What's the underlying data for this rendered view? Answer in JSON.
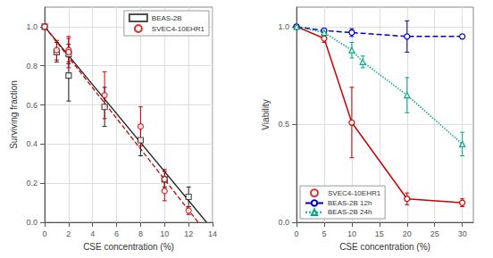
{
  "chart_data": [
    {
      "type": "scatter",
      "xlabel": "CSE concentration (%)",
      "ylabel": "Surviving fraction",
      "xlim": [
        0,
        14
      ],
      "ylim": [
        0.0,
        1.1
      ],
      "xticks": [
        0,
        2,
        4,
        6,
        8,
        10,
        12,
        14
      ],
      "yticks": [
        {
          "value": 0.0,
          "label": "0.0"
        },
        0.2,
        0.4,
        0.6,
        0.8,
        {
          "value": 1.0,
          "label": "1.0"
        }
      ],
      "grid": true,
      "legend": "upper right",
      "series": [
        {
          "name": "BEAS-2B",
          "color": "#222222",
          "marker": "square",
          "line_style": "solid",
          "x": [
            0,
            1,
            2,
            2,
            5,
            8,
            10,
            12
          ],
          "values": [
            1.0,
            0.87,
            0.86,
            0.75,
            0.59,
            0.42,
            0.22,
            0.13
          ],
          "yerr": [
            0.0,
            0.05,
            0.05,
            0.13,
            0.1,
            0.08,
            0.04,
            0.05
          ],
          "fit": {
            "x": [
              0,
              13.5
            ],
            "values": [
              1.0,
              0.0
            ]
          }
        },
        {
          "name": "SVEC4-10EHR1",
          "color": "#cc0000",
          "marker": "circle",
          "line_style": "dashed",
          "x": [
            0,
            1,
            2,
            2,
            5,
            8,
            10,
            10,
            12
          ],
          "values": [
            1.0,
            0.88,
            0.88,
            0.87,
            0.65,
            0.49,
            0.22,
            0.16,
            0.06
          ],
          "yerr": [
            0.0,
            0.05,
            0.06,
            0.08,
            0.12,
            0.1,
            0.05,
            0.05,
            0.02
          ],
          "fit": {
            "x": [
              0,
              12.8
            ],
            "values": [
              1.0,
              0.0
            ]
          }
        }
      ]
    },
    {
      "type": "line",
      "xlabel": "CSE concentration (%)",
      "ylabel": "Viability",
      "xlim": [
        0,
        32
      ],
      "ylim": [
        0.0,
        1.1
      ],
      "xticks": [
        0,
        5,
        10,
        15,
        20,
        25,
        30
      ],
      "yticks": [
        {
          "value": 0.0,
          "label": "0.0"
        },
        0.5,
        {
          "value": 1.0,
          "label": "1.0"
        }
      ],
      "grid": true,
      "legend": "lower left",
      "series": [
        {
          "name": "SVEC4-10EHR1",
          "color": "#cc0000",
          "marker": "circle",
          "line_style": "solid",
          "x": [
            0,
            5,
            10,
            20,
            30
          ],
          "values": [
            1.0,
            0.94,
            0.51,
            0.12,
            0.1
          ],
          "yerr": [
            0.01,
            0.02,
            0.18,
            0.03,
            0.02
          ]
        },
        {
          "name": "BEAS-2B 12h",
          "color": "#0000bb",
          "marker": "circle",
          "line_style": "dashed",
          "x": [
            0,
            5,
            10,
            20,
            30
          ],
          "values": [
            1.0,
            0.98,
            0.97,
            0.95,
            0.95
          ],
          "yerr": [
            0.01,
            0.01,
            0.02,
            0.08,
            0.01
          ]
        },
        {
          "name": "BEAS-2B 24h",
          "color": "#00aa88",
          "marker": "triangle",
          "line_style": "dotted",
          "x": [
            0,
            5,
            10,
            12,
            20,
            30
          ],
          "values": [
            1.0,
            0.97,
            0.88,
            0.82,
            0.65,
            0.4
          ],
          "yerr": [
            0.01,
            0.02,
            0.04,
            0.03,
            0.09,
            0.06
          ]
        }
      ]
    }
  ]
}
